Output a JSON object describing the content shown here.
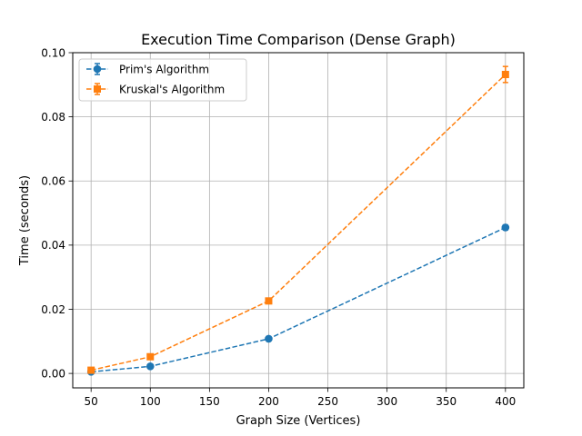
{
  "chart_data": {
    "type": "line",
    "title": "Execution Time Comparison (Dense Graph)",
    "xlabel": "Graph Size (Vertices)",
    "ylabel": "Time (seconds)",
    "xlim": [
      34.5,
      415.5
    ],
    "ylim": [
      -0.0045,
      0.1
    ],
    "x_ticks": [
      50,
      100,
      150,
      200,
      250,
      300,
      350,
      400
    ],
    "x_tick_labels": [
      "50",
      "100",
      "150",
      "200",
      "250",
      "300",
      "350",
      "400"
    ],
    "y_ticks": [
      0.0,
      0.02,
      0.04,
      0.06,
      0.08,
      0.1
    ],
    "y_tick_labels": [
      "0.00",
      "0.02",
      "0.04",
      "0.06",
      "0.08",
      "0.10"
    ],
    "grid": true,
    "legend_position": "top-left",
    "x": [
      50,
      100,
      200,
      400
    ],
    "series": [
      {
        "name": "Prim's Algorithm",
        "values": [
          0.0005,
          0.0022,
          0.0108,
          0.0455
        ],
        "errors": [
          0.0002,
          0.0003,
          0.0005,
          0.0008
        ],
        "color": "#1f77b4",
        "marker": "circle",
        "linestyle": "dashed"
      },
      {
        "name": "Kruskal's Algorithm",
        "values": [
          0.001,
          0.0052,
          0.0226,
          0.0932
        ],
        "errors": [
          0.0002,
          0.0004,
          0.0006,
          0.0025
        ],
        "color": "#ff7f0e",
        "marker": "square",
        "linestyle": "dashed"
      }
    ]
  }
}
